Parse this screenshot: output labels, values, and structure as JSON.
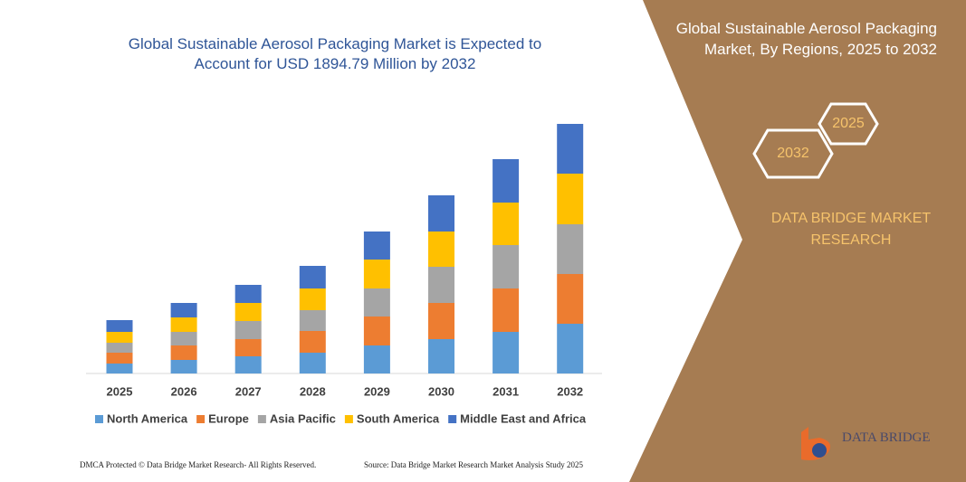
{
  "chart_data": {
    "type": "bar",
    "stacked": true,
    "title": "Global Sustainable Aerosol Packaging Market is Expected to Account for USD 1894.79 Million by 2032",
    "categories": [
      "2025",
      "2026",
      "2027",
      "2028",
      "2029",
      "2030",
      "2031",
      "2032"
    ],
    "series": [
      {
        "name": "North America",
        "color": "#5b9bd5",
        "values": [
          11,
          15,
          19,
          23,
          31,
          38,
          46,
          55
        ]
      },
      {
        "name": "Europe",
        "color": "#ed7d31",
        "values": [
          12,
          16,
          19,
          24,
          32,
          40,
          48,
          55
        ]
      },
      {
        "name": "Asia Pacific",
        "color": "#a5a5a5",
        "values": [
          11,
          15,
          20,
          23,
          31,
          40,
          48,
          55
        ]
      },
      {
        "name": "South America",
        "color": "#ffc000",
        "values": [
          12,
          16,
          20,
          24,
          32,
          39,
          47,
          56
        ]
      },
      {
        "name": "Middle East and Africa",
        "color": "#4472c4",
        "values": [
          13,
          16,
          20,
          25,
          31,
          40,
          48,
          55
        ]
      }
    ],
    "legend": "bottom"
  },
  "side_panel": {
    "title": "Global Sustainable Aerosol Packaging Market, By Regions, 2025 to 2032",
    "hex_labels": [
      "2025",
      "2032"
    ],
    "brand": "DATA BRIDGE MARKET RESEARCH"
  },
  "logo": "DATA BRIDGE",
  "footer": {
    "left": "DMCA Protected © Data Bridge Market Research- All Rights Reserved.",
    "right": "Source: Data Bridge Market Research Market Analysis Study 2025"
  }
}
